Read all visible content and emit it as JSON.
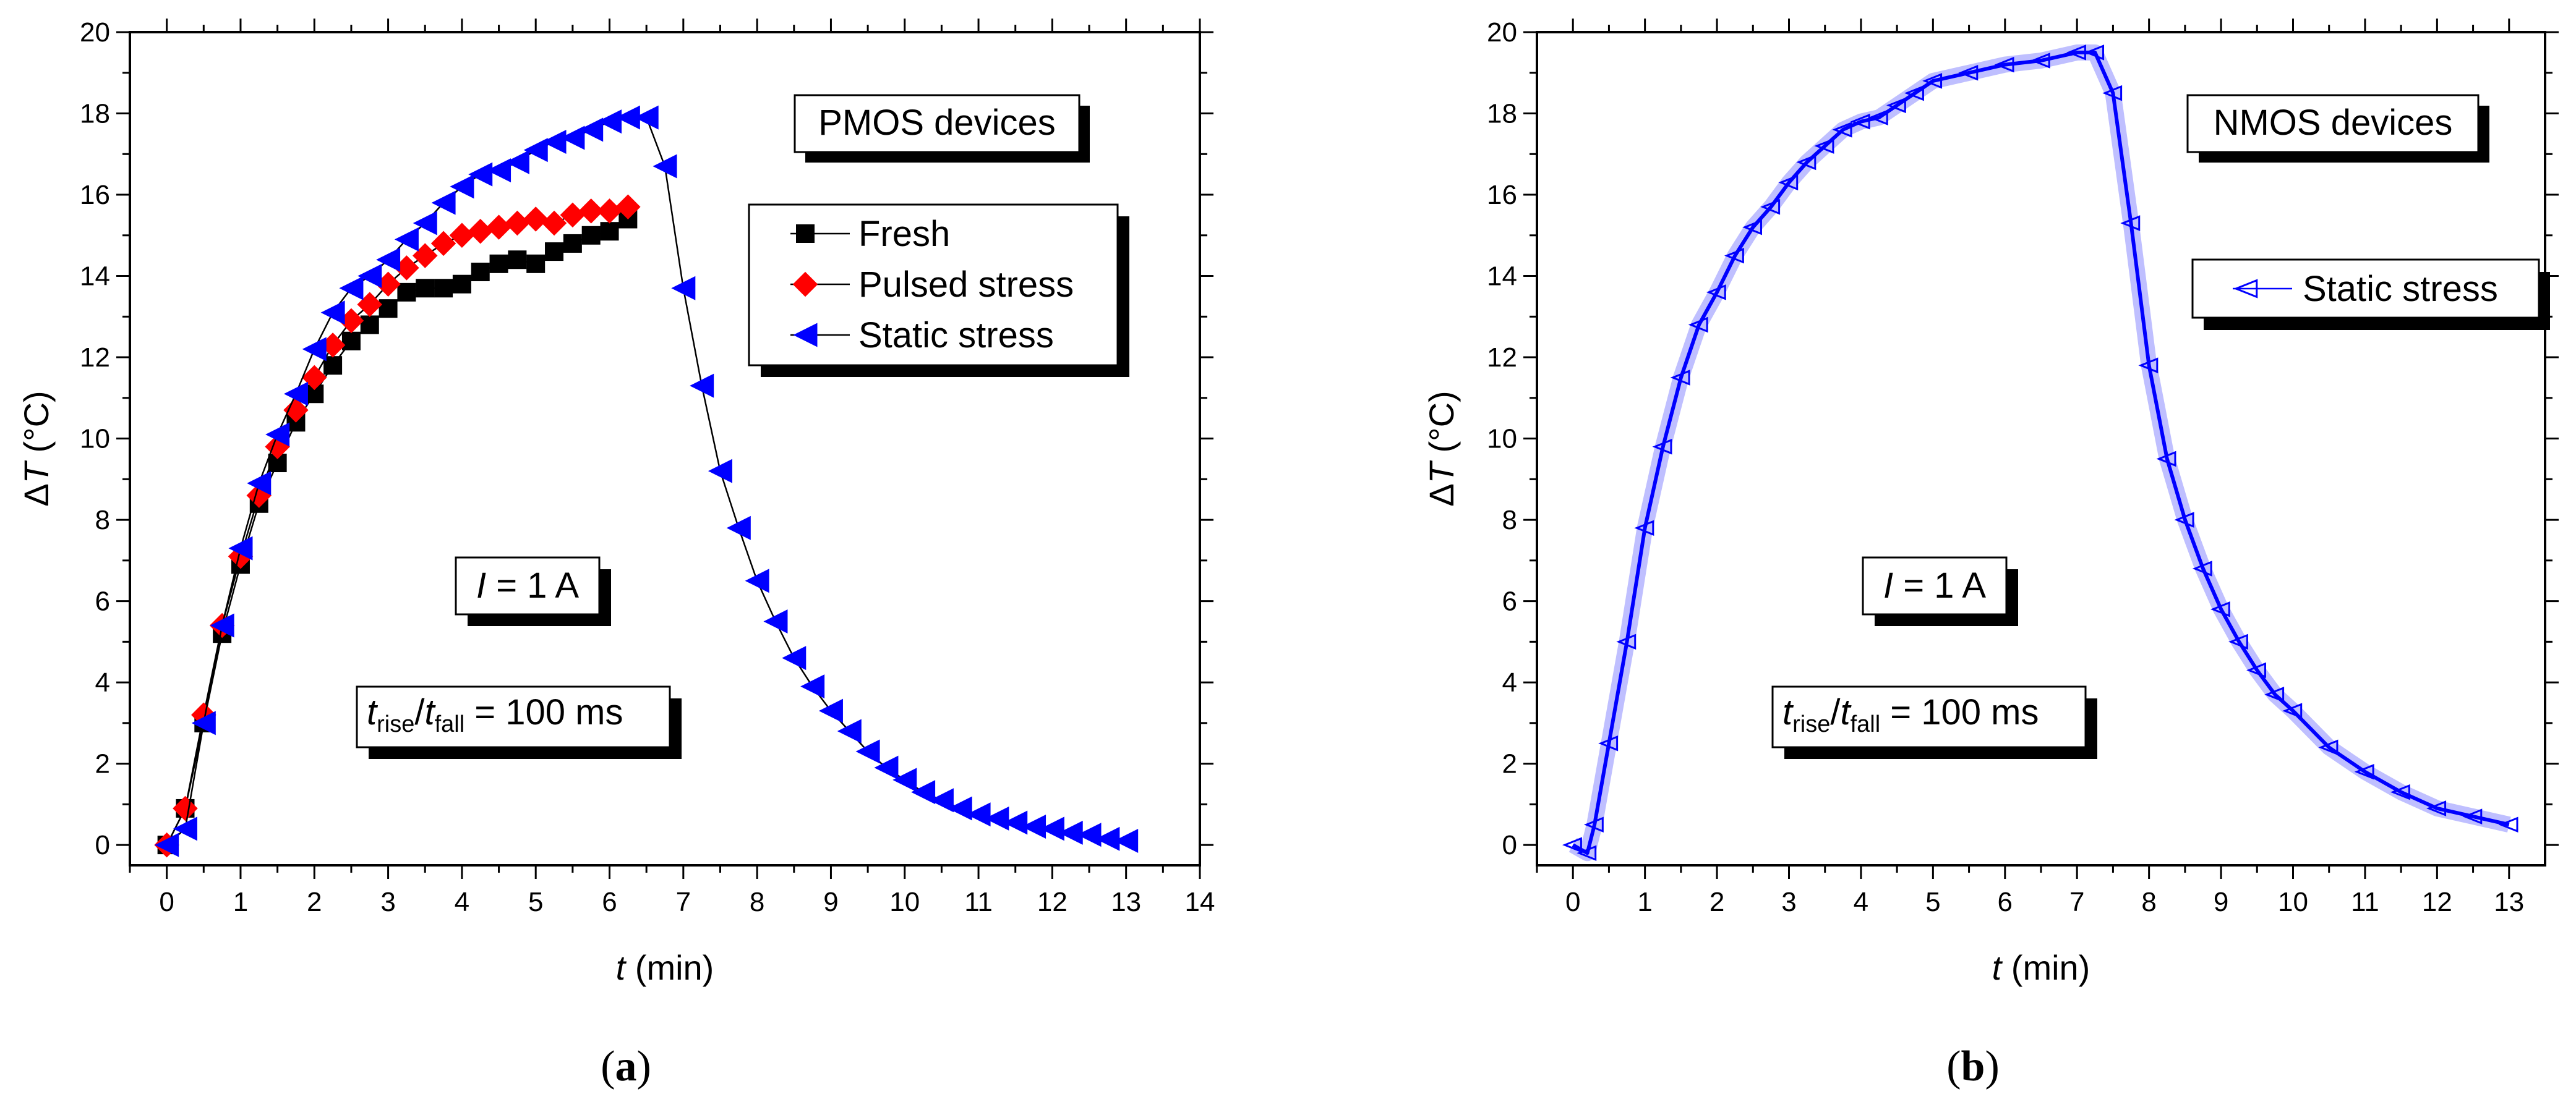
{
  "chart_data": [
    {
      "id": "a",
      "type": "scatter",
      "panel_label_open": "(",
      "panel_label": "a",
      "panel_label_close": ")",
      "xlabel_var": "t",
      "xlabel_unit": " (min)",
      "ylabel_prefix": "Δ",
      "ylabel_var": "T",
      "ylabel_unit": " (°C)",
      "xlim": [
        -0.5,
        14.0
      ],
      "ylim": [
        -0.5,
        20.0
      ],
      "xticks": [
        "0",
        "1",
        "2",
        "3",
        "4",
        "5",
        "6",
        "7",
        "8",
        "9",
        "10",
        "11",
        "12",
        "13",
        "14"
      ],
      "yticks": [
        "0",
        "2",
        "4",
        "6",
        "8",
        "10",
        "12",
        "14",
        "16",
        "18",
        "20"
      ],
      "device_box": "PMOS devices",
      "current_box": {
        "var": "I",
        "text": " = 1 A"
      },
      "timing_box": {
        "t1": "t",
        "sub1": "rise",
        "slash": "/",
        "t2": "t",
        "sub2": "fall",
        "rest": " = 100 ms"
      },
      "series": [
        {
          "name": "Fresh",
          "color": "#000000",
          "marker": "square",
          "x": [
            0,
            0.25,
            0.5,
            0.75,
            1.0,
            1.25,
            1.5,
            1.75,
            2.0,
            2.25,
            2.5,
            2.75,
            3.0,
            3.25,
            3.5,
            3.75,
            4.0,
            4.25,
            4.5,
            4.75,
            5.0,
            5.25,
            5.5,
            5.75,
            6.0,
            6.25
          ],
          "y": [
            0,
            0.9,
            3.0,
            5.2,
            6.9,
            8.4,
            9.4,
            10.4,
            11.1,
            11.8,
            12.4,
            12.8,
            13.2,
            13.6,
            13.7,
            13.7,
            13.8,
            14.1,
            14.3,
            14.4,
            14.3,
            14.6,
            14.8,
            15.0,
            15.1,
            15.4
          ]
        },
        {
          "name": "Pulsed stress",
          "color": "#ff0000",
          "marker": "diamond",
          "x": [
            0,
            0.25,
            0.5,
            0.75,
            1.0,
            1.25,
            1.5,
            1.75,
            2.0,
            2.25,
            2.5,
            2.75,
            3.0,
            3.25,
            3.5,
            3.75,
            4.0,
            4.25,
            4.5,
            4.75,
            5.0,
            5.25,
            5.5,
            5.75,
            6.0,
            6.25
          ],
          "y": [
            0,
            0.9,
            3.2,
            5.4,
            7.1,
            8.6,
            9.8,
            10.7,
            11.5,
            12.3,
            12.9,
            13.3,
            13.8,
            14.2,
            14.5,
            14.8,
            15.0,
            15.1,
            15.2,
            15.3,
            15.4,
            15.3,
            15.5,
            15.6,
            15.6,
            15.7
          ]
        },
        {
          "name": "Static stress",
          "color": "#0000ff",
          "marker": "triangle-left",
          "x": [
            0,
            0.25,
            0.5,
            0.75,
            1.0,
            1.25,
            1.5,
            1.75,
            2.0,
            2.25,
            2.5,
            2.75,
            3.0,
            3.25,
            3.5,
            3.75,
            4.0,
            4.25,
            4.5,
            4.75,
            5.0,
            5.25,
            5.5,
            5.75,
            6.0,
            6.25,
            6.5,
            6.75,
            7.0,
            7.25,
            7.5,
            7.75,
            8.0,
            8.25,
            8.5,
            8.75,
            9.0,
            9.25,
            9.5,
            9.75,
            10.0,
            10.25,
            10.5,
            10.75,
            11.0,
            11.25,
            11.5,
            11.75,
            12.0,
            12.25,
            12.5,
            12.75,
            13.0
          ],
          "y": [
            0,
            0.4,
            3.0,
            5.4,
            7.3,
            8.9,
            10.1,
            11.1,
            12.2,
            13.1,
            13.7,
            14.0,
            14.4,
            14.9,
            15.3,
            15.8,
            16.2,
            16.5,
            16.6,
            16.8,
            17.1,
            17.3,
            17.4,
            17.6,
            17.8,
            17.9,
            17.9,
            16.7,
            13.7,
            11.3,
            9.2,
            7.8,
            6.5,
            5.5,
            4.6,
            3.9,
            3.3,
            2.8,
            2.3,
            1.9,
            1.6,
            1.3,
            1.1,
            0.9,
            0.75,
            0.65,
            0.55,
            0.45,
            0.4,
            0.3,
            0.25,
            0.15,
            0.1
          ]
        }
      ]
    },
    {
      "id": "b",
      "type": "line",
      "panel_label_open": "(",
      "panel_label": "b",
      "panel_label_close": ")",
      "xlabel_var": "t",
      "xlabel_unit": " (min)",
      "ylabel_prefix": "Δ",
      "ylabel_var": "T",
      "ylabel_unit": " (°C)",
      "xlim": [
        -0.5,
        13.5
      ],
      "ylim": [
        -0.5,
        20.0
      ],
      "xticks": [
        "0",
        "1",
        "2",
        "3",
        "4",
        "5",
        "6",
        "7",
        "8",
        "9",
        "10",
        "11",
        "12",
        "13"
      ],
      "yticks": [
        "0",
        "2",
        "4",
        "6",
        "8",
        "10",
        "12",
        "14",
        "16",
        "18",
        "20"
      ],
      "device_box": "NMOS devices",
      "current_box": {
        "var": "I",
        "text": " = 1 A"
      },
      "timing_box": {
        "t1": "t",
        "sub1": "rise",
        "slash": "/",
        "t2": "t",
        "sub2": "fall",
        "rest": " = 100 ms"
      },
      "series": [
        {
          "name": "Static stress",
          "color": "#0000ff",
          "marker": "triangle-left-open",
          "x": [
            0,
            0.2,
            0.3,
            0.5,
            0.75,
            1.0,
            1.25,
            1.5,
            1.75,
            2.0,
            2.25,
            2.5,
            2.75,
            3.0,
            3.25,
            3.5,
            3.75,
            4.0,
            4.25,
            4.5,
            4.75,
            5.0,
            5.5,
            6.0,
            6.5,
            7.0,
            7.25,
            7.5,
            7.75,
            8.0,
            8.25,
            8.5,
            8.75,
            9.0,
            9.25,
            9.5,
            9.75,
            10.0,
            10.5,
            11.0,
            11.5,
            12.0,
            12.5,
            13.0
          ],
          "y": [
            0,
            -0.2,
            0.5,
            2.5,
            5.0,
            7.8,
            9.8,
            11.5,
            12.8,
            13.6,
            14.5,
            15.2,
            15.7,
            16.3,
            16.8,
            17.2,
            17.6,
            17.8,
            17.9,
            18.2,
            18.5,
            18.8,
            19.0,
            19.2,
            19.3,
            19.5,
            19.5,
            18.5,
            15.3,
            11.8,
            9.5,
            8.0,
            6.8,
            5.8,
            5.0,
            4.3,
            3.7,
            3.3,
            2.4,
            1.8,
            1.3,
            0.9,
            0.7,
            0.5
          ]
        }
      ]
    }
  ]
}
